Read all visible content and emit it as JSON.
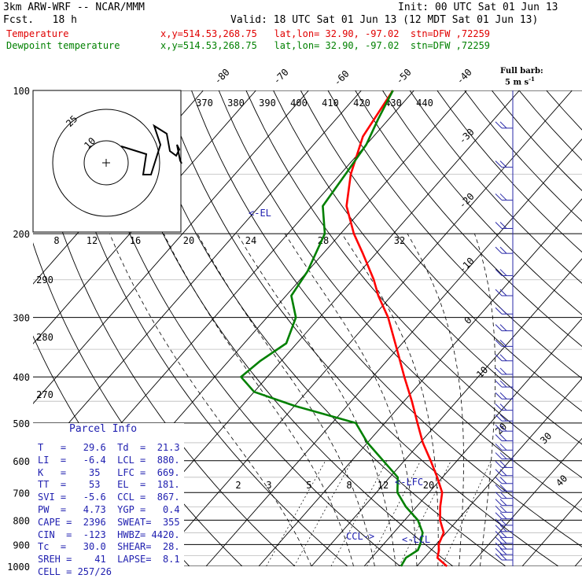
{
  "header": {
    "model": "3km ARW-WRF -- NCAR/MMM",
    "init": "Init: 00 UTC Sat 01 Jun 13",
    "fcst": "Fcst.   18 h",
    "valid": "Valid: 18 UTC Sat 01 Jun 13 (12 MDT Sat 01 Jun 13)",
    "temp_label": "Temperature",
    "temp_loc": "x,y=514.53,268.75   lat,lon= 32.90, -97.02  stn=DFW ,72259",
    "dew_label": "Dewpoint temperature",
    "dew_loc": "x,y=514.53,268.75   lat,lon= 32.90, -97.02  stn=DFW ,72259",
    "barb_key_1": "Full barb:",
    "barb_key_2": "5 m s",
    "barb_key_exp": "-1"
  },
  "colors": {
    "temperature": "#ff0000",
    "dewpoint": "#008000",
    "text_blue": "#2020b0",
    "black": "#000000"
  },
  "chart_data": {
    "type": "line",
    "yscale": "log",
    "ylim": [
      1000,
      100
    ],
    "pressure_labels": [
      "100",
      "200",
      "300",
      "400",
      "500",
      "600",
      "700",
      "800",
      "900",
      "1000"
    ],
    "isotherm_labels": [
      "-80",
      "-70",
      "-60",
      "-50",
      "-40",
      "-30",
      "-20",
      "-10",
      "0",
      "10",
      "20",
      "30",
      "40"
    ],
    "theta_labels": [
      "370",
      "380",
      "390",
      "400",
      "410",
      "420",
      "430",
      "440"
    ],
    "theta_left_labels": [
      "290",
      "280",
      "270"
    ],
    "mixing_ratio_labels": [
      "2",
      "3",
      "5",
      "8",
      "12",
      "20"
    ],
    "hodo_speed_labels": [
      "8",
      "12",
      "16",
      "20",
      "24",
      "28",
      "32"
    ],
    "hodo_units": "kts",
    "hodo_ring_labels": [
      "25",
      "10"
    ],
    "series": [
      {
        "name": "Temperature",
        "color": "#ff0000",
        "points": [
          [
            1000,
            25.7
          ],
          [
            960,
            22.5
          ],
          [
            925,
            21.5
          ],
          [
            900,
            20.5
          ],
          [
            850,
            19.5
          ],
          [
            800,
            16.7
          ],
          [
            750,
            14.5
          ],
          [
            700,
            12.5
          ],
          [
            650,
            9.0
          ],
          [
            600,
            5.0
          ],
          [
            550,
            0.5
          ],
          [
            500,
            -3.8
          ],
          [
            450,
            -8.5
          ],
          [
            400,
            -14.0
          ],
          [
            350,
            -20.0
          ],
          [
            300,
            -27.0
          ],
          [
            270,
            -32.5
          ],
          [
            250,
            -36.0
          ],
          [
            220,
            -42.5
          ],
          [
            200,
            -47.5
          ],
          [
            175,
            -53.5
          ],
          [
            150,
            -58.0
          ],
          [
            125,
            -62.0
          ],
          [
            100,
            -64.0
          ]
        ]
      },
      {
        "name": "Dewpoint temperature",
        "color": "#008000",
        "points": [
          [
            1000,
            17.0
          ],
          [
            960,
            16.5
          ],
          [
            925,
            17.5
          ],
          [
            900,
            17.0
          ],
          [
            850,
            15.5
          ],
          [
            800,
            12.5
          ],
          [
            750,
            8.0
          ],
          [
            700,
            4.0
          ],
          [
            650,
            1.5
          ],
          [
            600,
            -4.0
          ],
          [
            550,
            -10.0
          ],
          [
            500,
            -15.5
          ],
          [
            460,
            -30.0
          ],
          [
            430,
            -40.0
          ],
          [
            400,
            -45.0
          ],
          [
            370,
            -44.0
          ],
          [
            340,
            -42.0
          ],
          [
            300,
            -44.5
          ],
          [
            270,
            -49.0
          ],
          [
            240,
            -50.0
          ],
          [
            200,
            -53.0
          ],
          [
            175,
            -58.0
          ],
          [
            150,
            -59.0
          ],
          [
            130,
            -60.0
          ],
          [
            115,
            -62.0
          ],
          [
            100,
            -64.0
          ]
        ]
      }
    ],
    "annotations": [
      "<-EL",
      "<-LFC",
      "CCL->",
      "<-LCL"
    ]
  },
  "parcel_info": {
    "title": "Parcel Info",
    "rows": [
      "T   =   29.6  Td  =  21.3",
      "LI  =   -6.4  LCL =  880.",
      "K   =    35   LFC =  669.",
      "TT  =    53   EL  =  181.",
      "SVI =   -5.6  CCL =  867.",
      "PW  =   4.73  YGP =   0.4",
      "CAPE =  2396  SWEAT=  355",
      "CIN  =  -123  HWBZ= 4420.",
      "Tc  =   30.0  SHEAR=  28.",
      "SREH =    41  LAPSE=  8.1",
      "CELL = 257/26"
    ]
  }
}
